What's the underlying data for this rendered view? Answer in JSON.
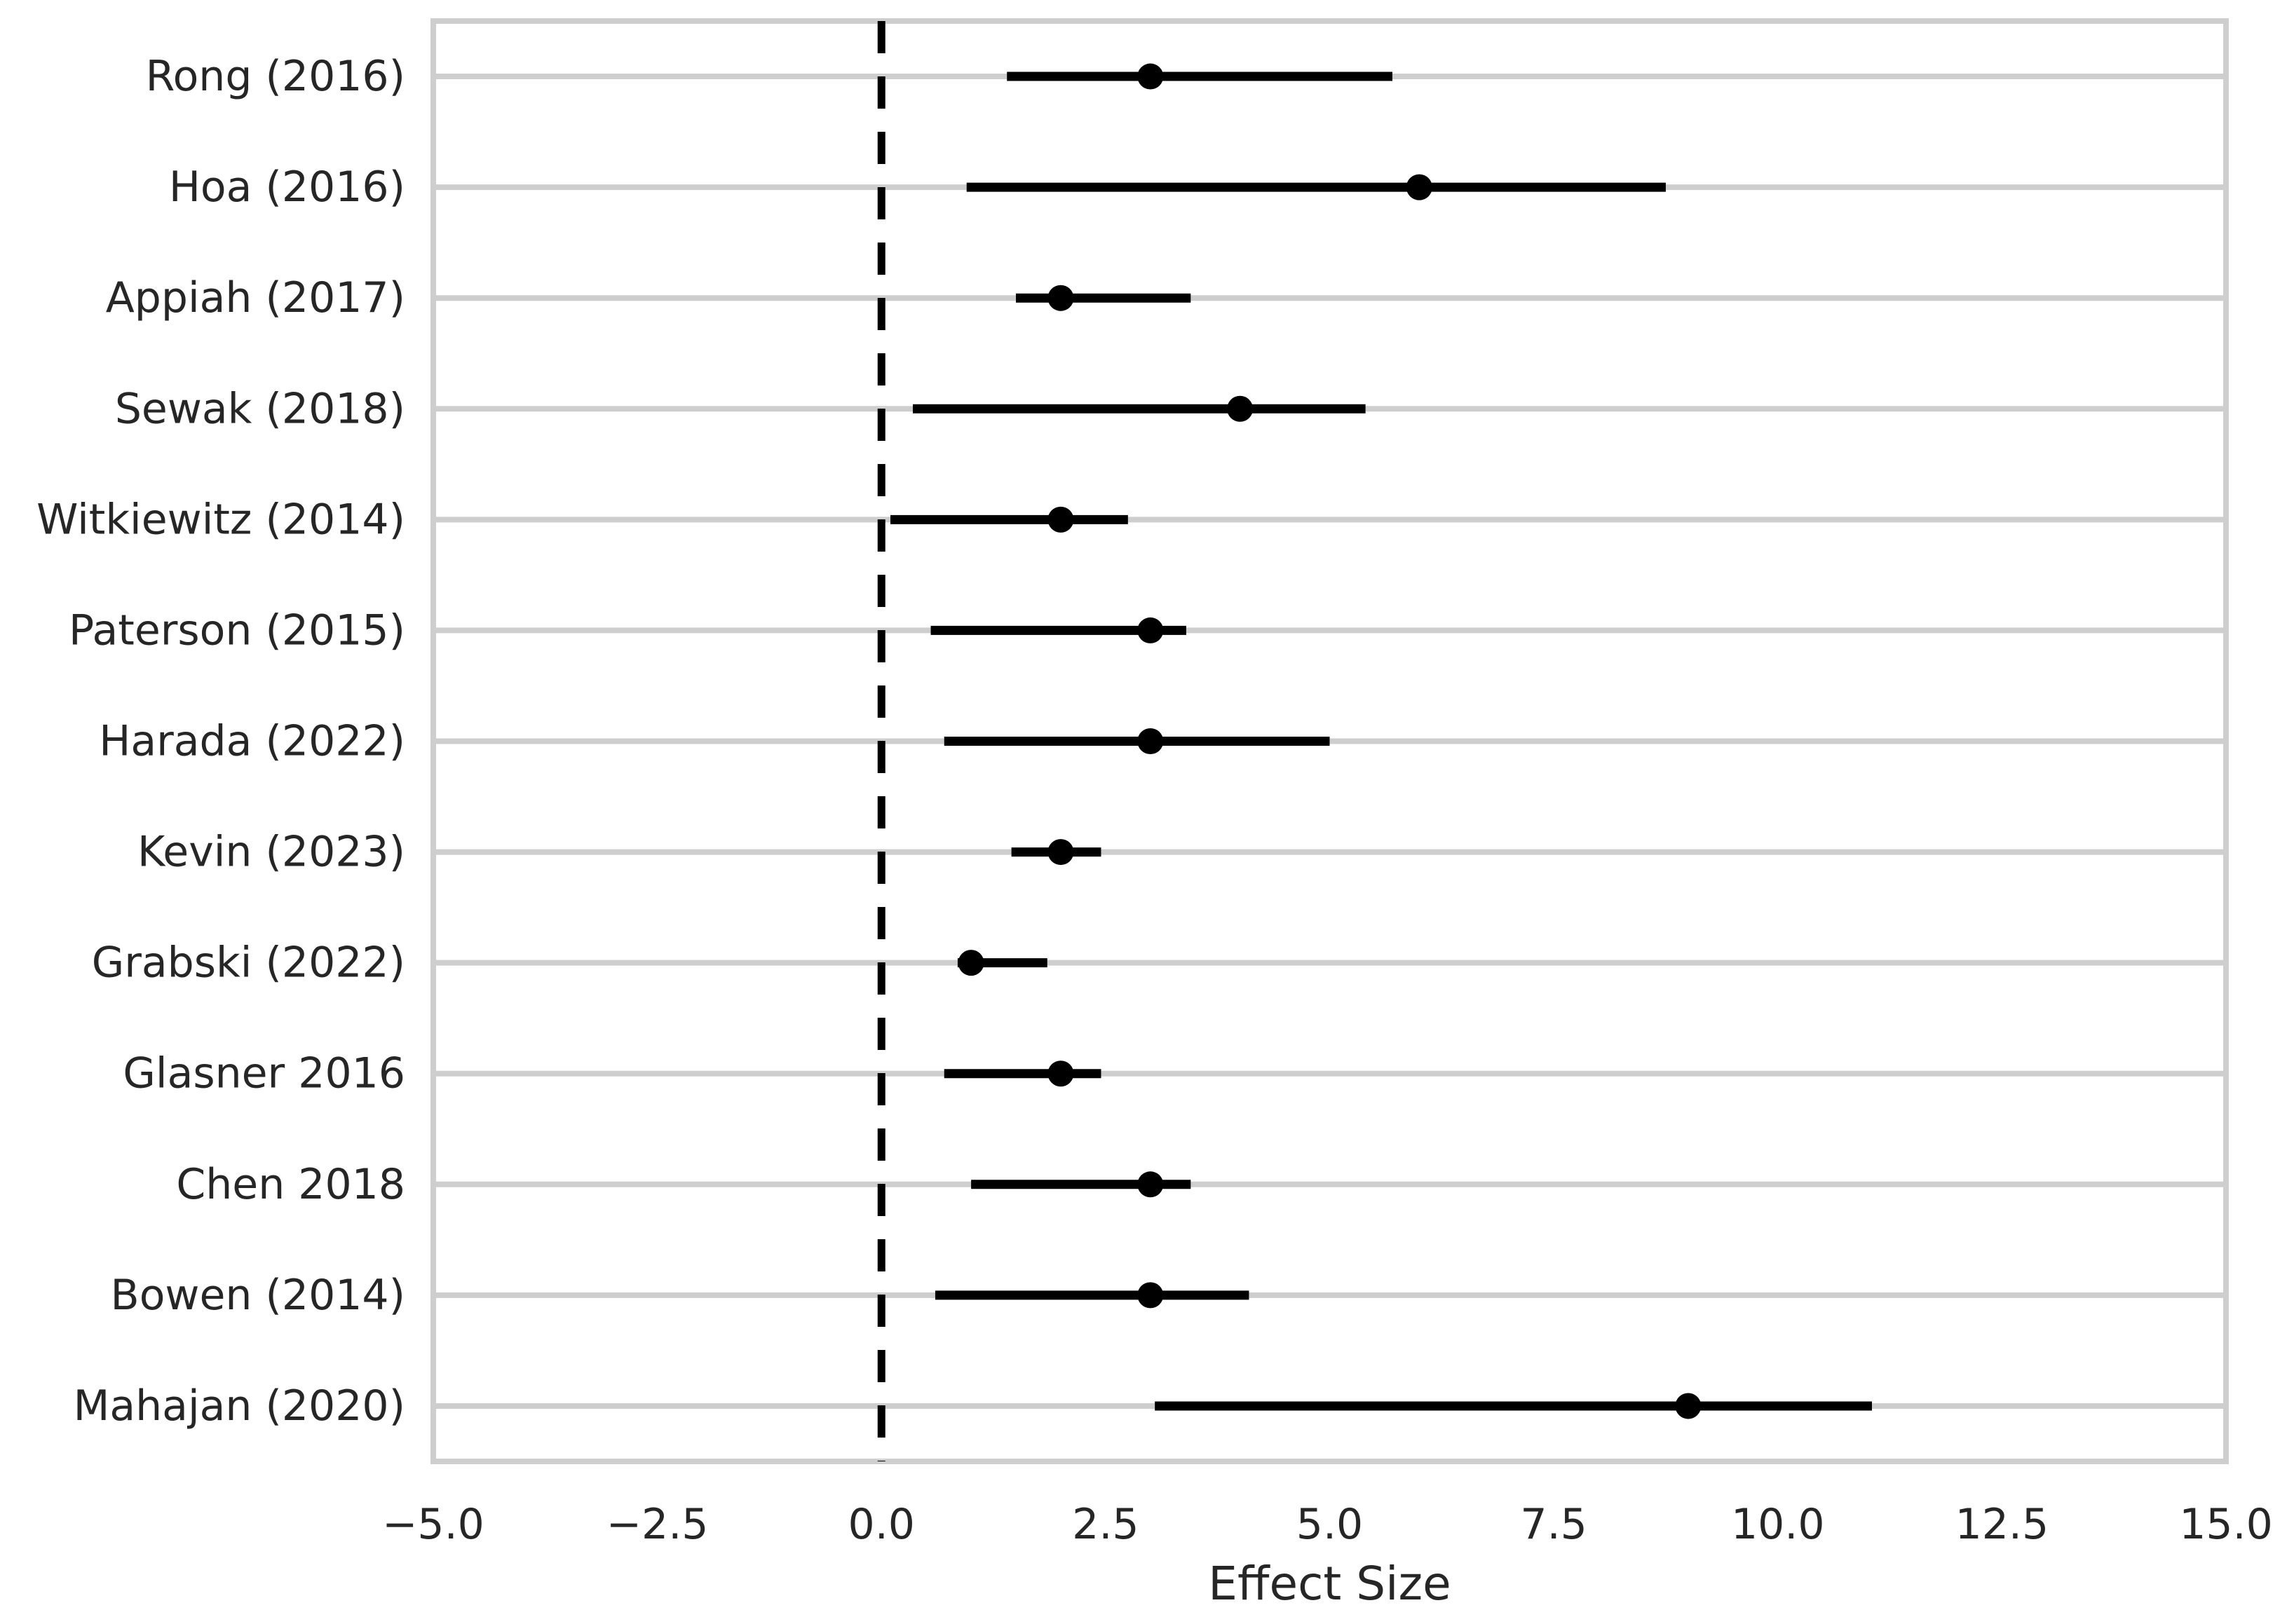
{
  "figure": {
    "background": "#ffffff"
  },
  "chart_data": {
    "type": "scatter",
    "subtype": "forest-plot-errorbar",
    "title": "",
    "xlabel": "Effect Size",
    "ylabel": "",
    "xlim": [
      -5.0,
      15.0
    ],
    "x_tick_values": [
      -5.0,
      -2.5,
      0.0,
      2.5,
      5.0,
      7.5,
      10.0,
      12.5,
      15.0
    ],
    "x_tick_labels": [
      "−5.0",
      "−2.5",
      "0.0",
      "2.5",
      "5.0",
      "7.5",
      "10.0",
      "12.5",
      "15.0"
    ],
    "grid": {
      "horizontal": true,
      "vertical": false
    },
    "legend": {
      "visible": false
    },
    "reference_line": {
      "x": 0.0,
      "style": "dashed",
      "orientation": "vertical"
    },
    "studies": [
      {
        "label": "Rong (2016)",
        "mean": 3.0,
        "ci_low": 1.4,
        "ci_high": 5.7
      },
      {
        "label": "Hoa (2016)",
        "mean": 6.0,
        "ci_low": 0.95,
        "ci_high": 8.75
      },
      {
        "label": "Appiah (2017)",
        "mean": 2.0,
        "ci_low": 1.5,
        "ci_high": 3.45
      },
      {
        "label": "Sewak (2018)",
        "mean": 4.0,
        "ci_low": 0.35,
        "ci_high": 5.4
      },
      {
        "label": "Witkiewitz (2014)",
        "mean": 2.0,
        "ci_low": 0.1,
        "ci_high": 2.75
      },
      {
        "label": "Paterson (2015)",
        "mean": 3.0,
        "ci_low": 0.55,
        "ci_high": 3.4
      },
      {
        "label": "Harada (2022)",
        "mean": 3.0,
        "ci_low": 0.7,
        "ci_high": 5.0
      },
      {
        "label": "Kevin (2023)",
        "mean": 2.0,
        "ci_low": 1.45,
        "ci_high": 2.45
      },
      {
        "label": "Grabski (2022)",
        "mean": 1.0,
        "ci_low": 0.85,
        "ci_high": 1.85
      },
      {
        "label": "Glasner 2016",
        "mean": 2.0,
        "ci_low": 0.7,
        "ci_high": 2.45
      },
      {
        "label": "Chen 2018",
        "mean": 3.0,
        "ci_low": 1.0,
        "ci_high": 3.45
      },
      {
        "label": "Bowen (2014)",
        "mean": 3.0,
        "ci_low": 0.6,
        "ci_high": 4.1
      },
      {
        "label": "Mahajan (2020)",
        "mean": 9.0,
        "ci_low": 3.05,
        "ci_high": 11.05
      }
    ]
  },
  "styles": {
    "marker_color": "#000000",
    "ci_line_color": "#000000",
    "reference_line_color": "#000000",
    "grid_color": "#cecece",
    "spine_color": "#cecece",
    "text_color": "#262626"
  }
}
